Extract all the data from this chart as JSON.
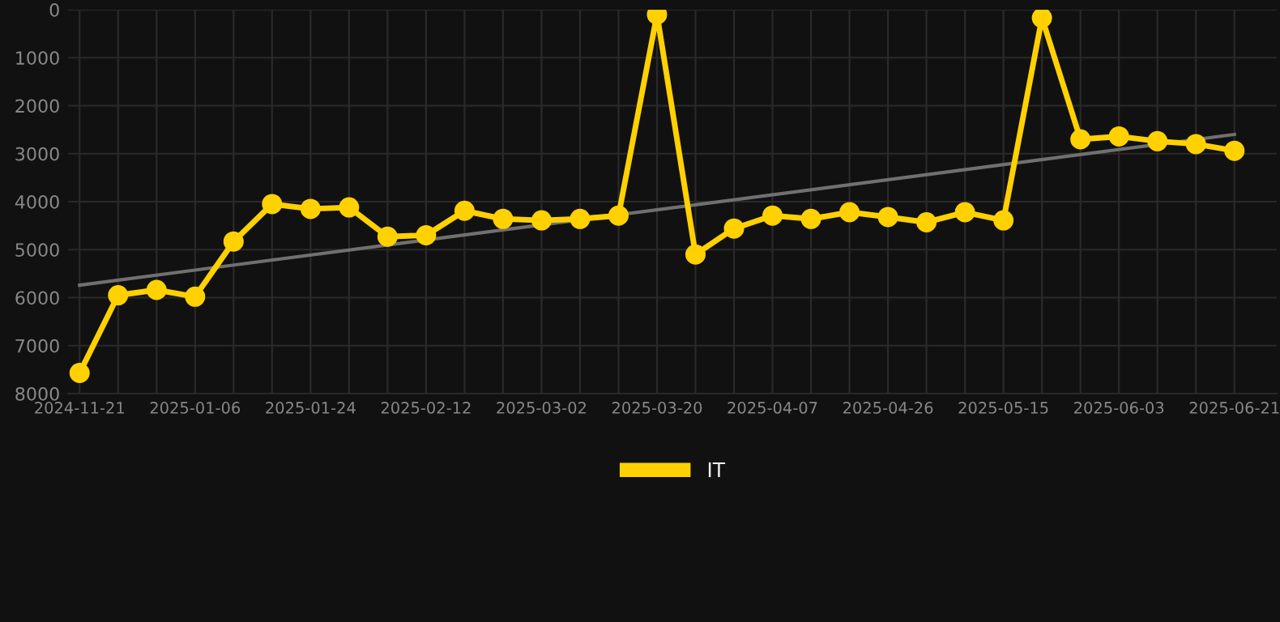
{
  "chart_data": {
    "type": "line",
    "categories": [
      "2024-11-21",
      null,
      null,
      "2025-01-06",
      null,
      null,
      "2025-01-24",
      null,
      null,
      "2025-02-12",
      null,
      null,
      "2025-03-02",
      null,
      null,
      "2025-03-20",
      null,
      null,
      "2025-04-07",
      null,
      null,
      "2025-04-26",
      null,
      null,
      "2025-05-15",
      null,
      null,
      "2025-06-03",
      null,
      null,
      "2025-06-21"
    ],
    "series": [
      {
        "name": "IT",
        "color": "#ffd100",
        "marker": "circle",
        "values": [
          7570,
          5950,
          5840,
          5980,
          4830,
          4050,
          4150,
          4120,
          4730,
          4700,
          4190,
          4360,
          4390,
          4360,
          4290,
          100,
          5100,
          4560,
          4290,
          4360,
          4220,
          4320,
          4430,
          4220,
          4390,
          170,
          2700,
          2640,
          2740,
          2800,
          2940
        ]
      },
      {
        "type": "line",
        "color": "#707070",
        "marker": "none",
        "values": [
          5740,
          null,
          null,
          null,
          null,
          null,
          null,
          null,
          null,
          null,
          null,
          null,
          null,
          null,
          null,
          null,
          null,
          null,
          null,
          null,
          null,
          null,
          null,
          null,
          null,
          null,
          null,
          null,
          null,
          null,
          2600
        ]
      }
    ],
    "ylim": [
      8000,
      0
    ],
    "yticks": [
      0,
      1000,
      2000,
      3000,
      4000,
      5000,
      6000,
      7000,
      8000
    ],
    "grid": true,
    "legend": "bottom"
  }
}
